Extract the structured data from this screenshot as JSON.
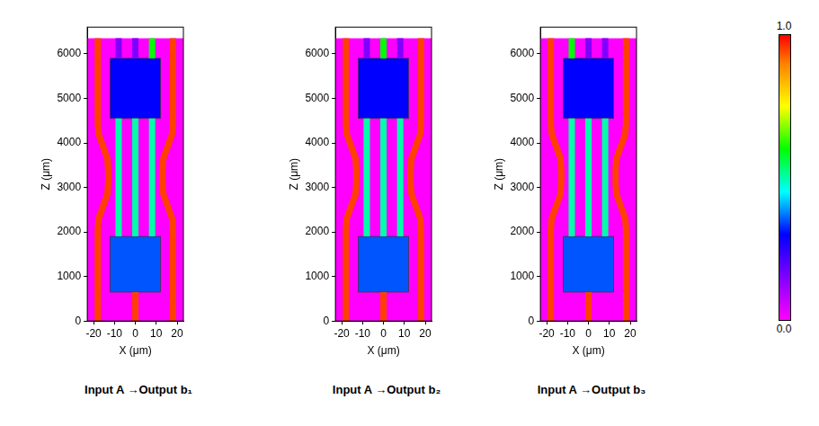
{
  "colorbar": {
    "range": [
      0,
      1
    ],
    "ticks": [
      {
        "value": 0,
        "label": "0.0"
      },
      {
        "value": 1,
        "label": "1.0"
      }
    ]
  },
  "chart_data": [
    {
      "type": "field_map",
      "title": "Input A →Output b₁",
      "x_label": "X (μm)",
      "y_label": "Z (μm)",
      "xlim": [
        -23,
        23
      ],
      "xticks": [
        -20,
        -10,
        0,
        10,
        20
      ],
      "ylim": [
        0,
        6600
      ],
      "yticks": [
        0,
        1000,
        2000,
        3000,
        4000,
        5000,
        6000
      ],
      "grid": false,
      "background": {
        "z": [
          0,
          6350
        ],
        "intensity": 0
      },
      "regions": [
        {
          "x": [
            -12,
            12
          ],
          "z": [
            650,
            1900
          ],
          "intensity": 0.35
        },
        {
          "x": [
            -12,
            12
          ],
          "z": [
            4550,
            5900
          ],
          "intensity": 0.3
        }
      ],
      "waveguides": [
        {
          "x": [
            -18,
            -18,
            -17.6,
            -15.5,
            -13.4,
            -13,
            -13,
            -13.4,
            -15.5,
            -17.6,
            -18,
            -18
          ],
          "z": [
            0,
            2050,
            2300,
            2575,
            2850,
            3100,
            3400,
            3650,
            3925,
            4200,
            4450,
            6350
          ],
          "intensity": 0.95
        },
        {
          "x": [
            18,
            18,
            17.6,
            15.5,
            13.4,
            13,
            13,
            13.4,
            15.5,
            17.6,
            18,
            18
          ],
          "z": [
            0,
            2050,
            2300,
            2575,
            2850,
            3100,
            3400,
            3650,
            3925,
            4200,
            4450,
            6350
          ],
          "intensity": 0.95
        },
        {
          "x": [
            0,
            0
          ],
          "z": [
            0,
            650
          ],
          "intensity": 0.95
        },
        {
          "x": [
            -8,
            -8
          ],
          "z": [
            1900,
            4550
          ],
          "intensity": 0.5
        },
        {
          "x": [
            0,
            0
          ],
          "z": [
            1900,
            4550
          ],
          "intensity": 0.5
        },
        {
          "x": [
            8,
            8
          ],
          "z": [
            1900,
            4550
          ],
          "intensity": 0.5
        },
        {
          "x": [
            -8,
            -8
          ],
          "z": [
            5900,
            6350
          ],
          "intensity": 0.15
        },
        {
          "x": [
            0,
            0
          ],
          "z": [
            5900,
            6350
          ],
          "intensity": 0.15
        },
        {
          "x": [
            8,
            8
          ],
          "z": [
            5900,
            6350
          ],
          "intensity": 0.6
        }
      ]
    },
    {
      "type": "field_map",
      "title": "Input A →Output b₂",
      "x_label": "X (μm)",
      "y_label": "Z (μm)",
      "xlim": [
        -23,
        23
      ],
      "xticks": [
        -20,
        -10,
        0,
        10,
        20
      ],
      "ylim": [
        0,
        6600
      ],
      "yticks": [
        0,
        1000,
        2000,
        3000,
        4000,
        5000,
        6000
      ],
      "grid": false,
      "background": {
        "z": [
          0,
          6350
        ],
        "intensity": 0
      },
      "regions": [
        {
          "x": [
            -12,
            12
          ],
          "z": [
            650,
            1900
          ],
          "intensity": 0.35
        },
        {
          "x": [
            -12,
            12
          ],
          "z": [
            4550,
            5900
          ],
          "intensity": 0.3
        }
      ],
      "waveguides": [
        {
          "x": [
            -18,
            -18,
            -17.6,
            -15.5,
            -13.4,
            -13,
            -13,
            -13.4,
            -15.5,
            -17.6,
            -18,
            -18
          ],
          "z": [
            0,
            2050,
            2300,
            2575,
            2850,
            3100,
            3400,
            3650,
            3925,
            4200,
            4450,
            6350
          ],
          "intensity": 0.95
        },
        {
          "x": [
            18,
            18,
            17.6,
            15.5,
            13.4,
            13,
            13,
            13.4,
            15.5,
            17.6,
            18,
            18
          ],
          "z": [
            0,
            2050,
            2300,
            2575,
            2850,
            3100,
            3400,
            3650,
            3925,
            4200,
            4450,
            6350
          ],
          "intensity": 0.95
        },
        {
          "x": [
            0,
            0
          ],
          "z": [
            0,
            650
          ],
          "intensity": 0.95
        },
        {
          "x": [
            -8,
            -8
          ],
          "z": [
            1900,
            4550
          ],
          "intensity": 0.5
        },
        {
          "x": [
            0,
            0
          ],
          "z": [
            1900,
            4550
          ],
          "intensity": 0.5
        },
        {
          "x": [
            8,
            8
          ],
          "z": [
            1900,
            4550
          ],
          "intensity": 0.5
        },
        {
          "x": [
            -8,
            -8
          ],
          "z": [
            5900,
            6350
          ],
          "intensity": 0.15
        },
        {
          "x": [
            0,
            0
          ],
          "z": [
            5900,
            6350
          ],
          "intensity": 0.6
        },
        {
          "x": [
            8,
            8
          ],
          "z": [
            5900,
            6350
          ],
          "intensity": 0.15
        }
      ]
    },
    {
      "type": "field_map",
      "title": "Input A →Output b₃",
      "x_label": "X (μm)",
      "y_label": "Z (μm)",
      "xlim": [
        -23,
        23
      ],
      "xticks": [
        -20,
        -10,
        0,
        10,
        20
      ],
      "ylim": [
        0,
        6600
      ],
      "yticks": [
        0,
        1000,
        2000,
        3000,
        4000,
        5000,
        6000
      ],
      "grid": false,
      "background": {
        "z": [
          0,
          6350
        ],
        "intensity": 0
      },
      "regions": [
        {
          "x": [
            -12,
            12
          ],
          "z": [
            650,
            1900
          ],
          "intensity": 0.35
        },
        {
          "x": [
            -12,
            12
          ],
          "z": [
            4550,
            5900
          ],
          "intensity": 0.3
        }
      ],
      "waveguides": [
        {
          "x": [
            -18,
            -18,
            -17.6,
            -15.5,
            -13.4,
            -13,
            -13,
            -13.4,
            -15.5,
            -17.6,
            -18,
            -18
          ],
          "z": [
            0,
            2050,
            2300,
            2575,
            2850,
            3100,
            3400,
            3650,
            3925,
            4200,
            4450,
            6350
          ],
          "intensity": 0.95
        },
        {
          "x": [
            18,
            18,
            17.6,
            15.5,
            13.4,
            13,
            13,
            13.4,
            15.5,
            17.6,
            18,
            18
          ],
          "z": [
            0,
            2050,
            2300,
            2575,
            2850,
            3100,
            3400,
            3650,
            3925,
            4200,
            4450,
            6350
          ],
          "intensity": 0.95
        },
        {
          "x": [
            0,
            0
          ],
          "z": [
            0,
            650
          ],
          "intensity": 0.95
        },
        {
          "x": [
            -8,
            -8
          ],
          "z": [
            1900,
            4550
          ],
          "intensity": 0.5
        },
        {
          "x": [
            0,
            0
          ],
          "z": [
            1900,
            4550
          ],
          "intensity": 0.5
        },
        {
          "x": [
            8,
            8
          ],
          "z": [
            1900,
            4550
          ],
          "intensity": 0.5
        },
        {
          "x": [
            -8,
            -8
          ],
          "z": [
            5900,
            6350
          ],
          "intensity": 0.6
        },
        {
          "x": [
            0,
            0
          ],
          "z": [
            5900,
            6350
          ],
          "intensity": 0.15
        },
        {
          "x": [
            8,
            8
          ],
          "z": [
            5900,
            6350
          ],
          "intensity": 0.15
        }
      ]
    }
  ]
}
